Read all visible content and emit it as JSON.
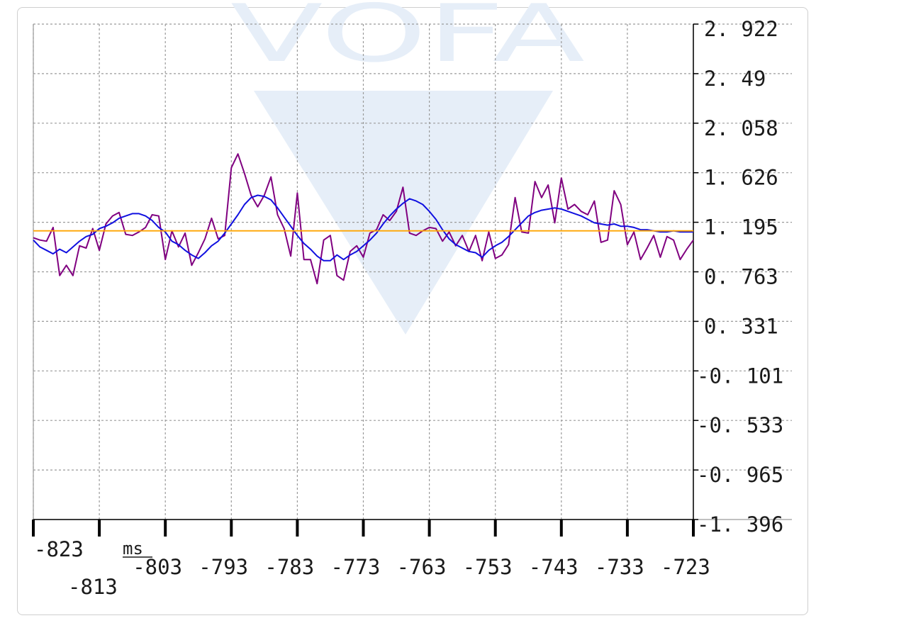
{
  "chart_data": {
    "type": "line",
    "xlabel": "ms",
    "ylabel": "",
    "xlim": [
      -823,
      -723
    ],
    "ylim": [
      -1.396,
      2.922
    ],
    "x_ticks": [
      "-823",
      "-813",
      "-803",
      "-793",
      "-783",
      "-773",
      "-763",
      "-753",
      "-743",
      "-733",
      "-723"
    ],
    "y_ticks": [
      "2. 922",
      "2. 49",
      "2. 058",
      "1. 626",
      "1. 195",
      "0. 763",
      "0. 331",
      "-0. 101",
      "-0. 533",
      "-0. 965",
      "-1. 396"
    ],
    "grid": true,
    "colors": {
      "series_purple": "#800080",
      "series_blue": "#1010e0",
      "series_orange": "#ffa500",
      "grid": "#9a9a9a",
      "axis": "#000000",
      "watermark": "#e6eef8"
    },
    "watermark_text": "VOFA",
    "series": [
      {
        "color": "#800080",
        "x": [
          -823,
          -822,
          -821,
          -820,
          -819,
          -818,
          -817,
          -816,
          -815,
          -814,
          -813,
          -812,
          -811,
          -810,
          -809,
          -808,
          -807,
          -806,
          -805,
          -804,
          -803,
          -802,
          -801,
          -800,
          -799,
          -798,
          -797,
          -796,
          -795,
          -794,
          -793,
          -792,
          -791,
          -790,
          -789,
          -788,
          -787,
          -786,
          -785,
          -784,
          -783,
          -782,
          -781,
          -780,
          -779,
          -778,
          -777,
          -776,
          -775,
          -774,
          -773,
          -772,
          -771,
          -770,
          -769,
          -768,
          -767,
          -766,
          -765,
          -764,
          -763,
          -762,
          -761,
          -760,
          -759,
          -758,
          -757,
          -756,
          -755,
          -754,
          -753,
          -752,
          -751,
          -750,
          -749,
          -748,
          -747,
          -746,
          -745,
          -744,
          -743,
          -742,
          -741,
          -740,
          -739,
          -738,
          -737,
          -736,
          -735,
          -734,
          -733,
          -732,
          -731,
          -730,
          -729,
          -728,
          -727,
          -726,
          -725,
          -724,
          -723
        ],
        "y": [
          1.06,
          1.04,
          1.03,
          1.15,
          0.73,
          0.82,
          0.73,
          0.99,
          0.97,
          1.14,
          0.95,
          1.18,
          1.25,
          1.28,
          1.09,
          1.08,
          1.11,
          1.15,
          1.26,
          1.25,
          0.87,
          1.12,
          0.98,
          1.1,
          0.82,
          0.93,
          1.05,
          1.23,
          1.05,
          1.08,
          1.67,
          1.79,
          1.62,
          1.43,
          1.33,
          1.43,
          1.59,
          1.26,
          1.14,
          0.9,
          1.45,
          0.87,
          0.87,
          0.66,
          1.04,
          1.08,
          0.73,
          0.69,
          0.94,
          0.99,
          0.89,
          1.1,
          1.13,
          1.26,
          1.21,
          1.29,
          1.5,
          1.1,
          1.08,
          1.12,
          1.15,
          1.14,
          1.03,
          1.11,
          0.99,
          1.08,
          0.94,
          1.08,
          0.86,
          1.11,
          0.88,
          0.91,
          1.0,
          1.41,
          1.11,
          1.1,
          1.55,
          1.41,
          1.52,
          1.19,
          1.58,
          1.31,
          1.35,
          1.29,
          1.26,
          1.38,
          1.02,
          1.04,
          1.47,
          1.35,
          1.0,
          1.11,
          0.87,
          0.97,
          1.08,
          0.89,
          1.07,
          1.04,
          0.87,
          0.96,
          1.04
        ]
      },
      {
        "color": "#1010e0",
        "x": [
          -823,
          -822,
          -821,
          -820,
          -819,
          -818,
          -817,
          -816,
          -815,
          -814,
          -813,
          -812,
          -811,
          -810,
          -809,
          -808,
          -807,
          -806,
          -805,
          -804,
          -803,
          -802,
          -801,
          -800,
          -799,
          -798,
          -797,
          -796,
          -795,
          -794,
          -793,
          -792,
          -791,
          -790,
          -789,
          -788,
          -787,
          -786,
          -785,
          -784,
          -783,
          -782,
          -781,
          -780,
          -779,
          -778,
          -777,
          -776,
          -775,
          -774,
          -773,
          -772,
          -771,
          -770,
          -769,
          -768,
          -767,
          -766,
          -765,
          -764,
          -763,
          -762,
          -761,
          -760,
          -759,
          -758,
          -757,
          -756,
          -755,
          -754,
          -753,
          -752,
          -751,
          -750,
          -749,
          -748,
          -747,
          -746,
          -745,
          -744,
          -743,
          -742,
          -741,
          -740,
          -739,
          -738,
          -737,
          -736,
          -735,
          -734,
          -733,
          -732,
          -731,
          -730,
          -729,
          -728,
          -727,
          -726,
          -725,
          -724,
          -723
        ],
        "y": [
          1.04,
          0.98,
          0.95,
          0.92,
          0.96,
          0.93,
          0.98,
          1.03,
          1.07,
          1.09,
          1.14,
          1.16,
          1.19,
          1.23,
          1.25,
          1.27,
          1.27,
          1.25,
          1.21,
          1.15,
          1.11,
          1.03,
          1.0,
          0.95,
          0.91,
          0.88,
          0.93,
          0.99,
          1.03,
          1.1,
          1.18,
          1.26,
          1.35,
          1.41,
          1.43,
          1.42,
          1.39,
          1.32,
          1.24,
          1.16,
          1.08,
          1.01,
          0.96,
          0.9,
          0.86,
          0.86,
          0.91,
          0.87,
          0.91,
          0.94,
          0.99,
          1.04,
          1.1,
          1.18,
          1.25,
          1.31,
          1.36,
          1.4,
          1.38,
          1.35,
          1.29,
          1.22,
          1.13,
          1.05,
          1.0,
          0.97,
          0.94,
          0.93,
          0.89,
          0.95,
          0.99,
          1.02,
          1.07,
          1.13,
          1.19,
          1.25,
          1.28,
          1.3,
          1.31,
          1.32,
          1.31,
          1.29,
          1.27,
          1.25,
          1.22,
          1.19,
          1.18,
          1.17,
          1.18,
          1.16,
          1.16,
          1.15,
          1.13,
          1.13,
          1.12,
          1.11,
          1.11,
          1.12,
          1.11,
          1.11,
          1.11
        ]
      },
      {
        "color": "#ffa500",
        "x": [
          -823,
          -723
        ],
        "y": [
          1.12,
          1.12
        ]
      }
    ]
  }
}
